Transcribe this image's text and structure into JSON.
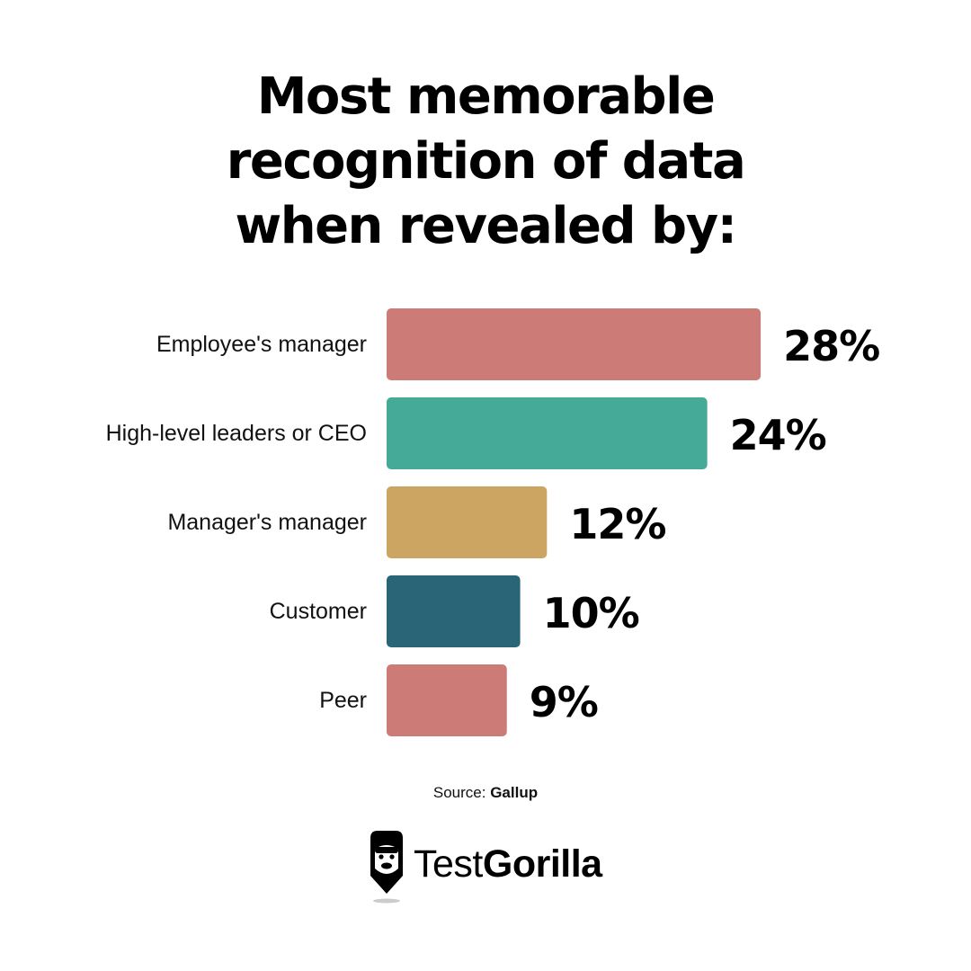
{
  "title_lines": [
    "Most memorable",
    "recognition of data",
    "when revealed by:"
  ],
  "chart_data": {
    "type": "bar",
    "orientation": "horizontal",
    "title": "Most memorable recognition of data when revealed by:",
    "categories": [
      "Employee's manager",
      "High-level leaders or CEO",
      "Manager's manager",
      "Customer",
      "Peer"
    ],
    "values": [
      28,
      24,
      12,
      10,
      9
    ],
    "value_labels": [
      "28%",
      "24%",
      "12%",
      "10%",
      "9%"
    ],
    "colors": [
      "#cd7b77",
      "#46aa98",
      "#cda562",
      "#296577",
      "#cd7b77"
    ],
    "unit": "%",
    "grid": false,
    "legend": "none"
  },
  "source": {
    "prefix": "Source:",
    "name": "Gallup"
  },
  "brand": {
    "name_part1": "Test",
    "name_part2": "Gorilla",
    "icon": "gorilla-logo-icon"
  }
}
